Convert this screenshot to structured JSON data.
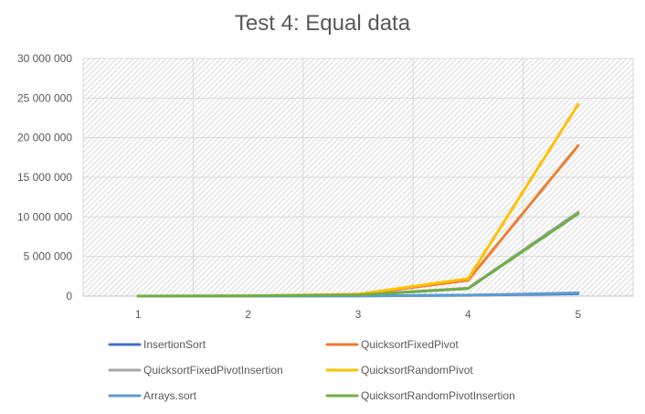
{
  "chart_data": {
    "type": "line",
    "title": "Test 4: Equal data",
    "xlabel": "",
    "ylabel": "",
    "categories": [
      "1",
      "2",
      "3",
      "4",
      "5"
    ],
    "ylim": [
      0,
      30000000
    ],
    "yticks": [
      0,
      5000000,
      10000000,
      15000000,
      20000000,
      25000000,
      30000000
    ],
    "ytick_labels": [
      "0",
      "5 000 000",
      "10 000 000",
      "15 000 000",
      "20 000 000",
      "25 000 000",
      "30 000 000"
    ],
    "grid": true,
    "legend_position": "bottom",
    "series": [
      {
        "name": "InsertionSort",
        "color": "#4472C4",
        "values": [
          0,
          5000,
          40000,
          120000,
          300000
        ]
      },
      {
        "name": "QuicksortFixedPivot",
        "color": "#ED7D31",
        "values": [
          0,
          30000,
          200000,
          2000000,
          19000000
        ]
      },
      {
        "name": "QuicksortFixedPivotInsertion",
        "color": "#A5A5A5",
        "values": [
          0,
          20000,
          150000,
          1000000,
          10600000
        ]
      },
      {
        "name": "QuicksortRandomPivot",
        "color": "#FFC000",
        "values": [
          0,
          35000,
          250000,
          2200000,
          24200000
        ]
      },
      {
        "name": "Arrays.sort",
        "color": "#5B9BD5",
        "values": [
          0,
          5000,
          30000,
          100000,
          400000
        ]
      },
      {
        "name": "QuicksortRandomPivotInsertion",
        "color": "#70AD47",
        "values": [
          0,
          20000,
          150000,
          950000,
          10400000
        ]
      }
    ]
  }
}
